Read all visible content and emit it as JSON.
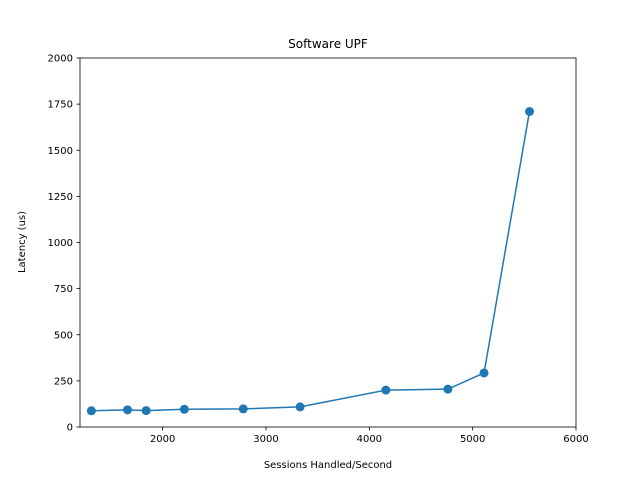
{
  "chart_data": {
    "type": "line",
    "title": "Software UPF",
    "xlabel": "Sessions Handled/Second",
    "ylabel": "Latency (us)",
    "xlim": [
      1200,
      6000
    ],
    "ylim": [
      0,
      2000
    ],
    "xticks": [
      2000,
      3000,
      4000,
      5000,
      6000
    ],
    "yticks": [
      0,
      250,
      500,
      750,
      1000,
      1250,
      1500,
      1750,
      2000
    ],
    "grid": false,
    "series": [
      {
        "color": "#1f77b4",
        "marker": "circle",
        "x": [
          1310,
          1660,
          1840,
          2210,
          2780,
          3330,
          4160,
          4760,
          5110,
          5550
        ],
        "y": [
          88,
          93,
          89,
          96,
          98,
          109,
          200,
          205,
          293,
          1710
        ]
      }
    ]
  }
}
